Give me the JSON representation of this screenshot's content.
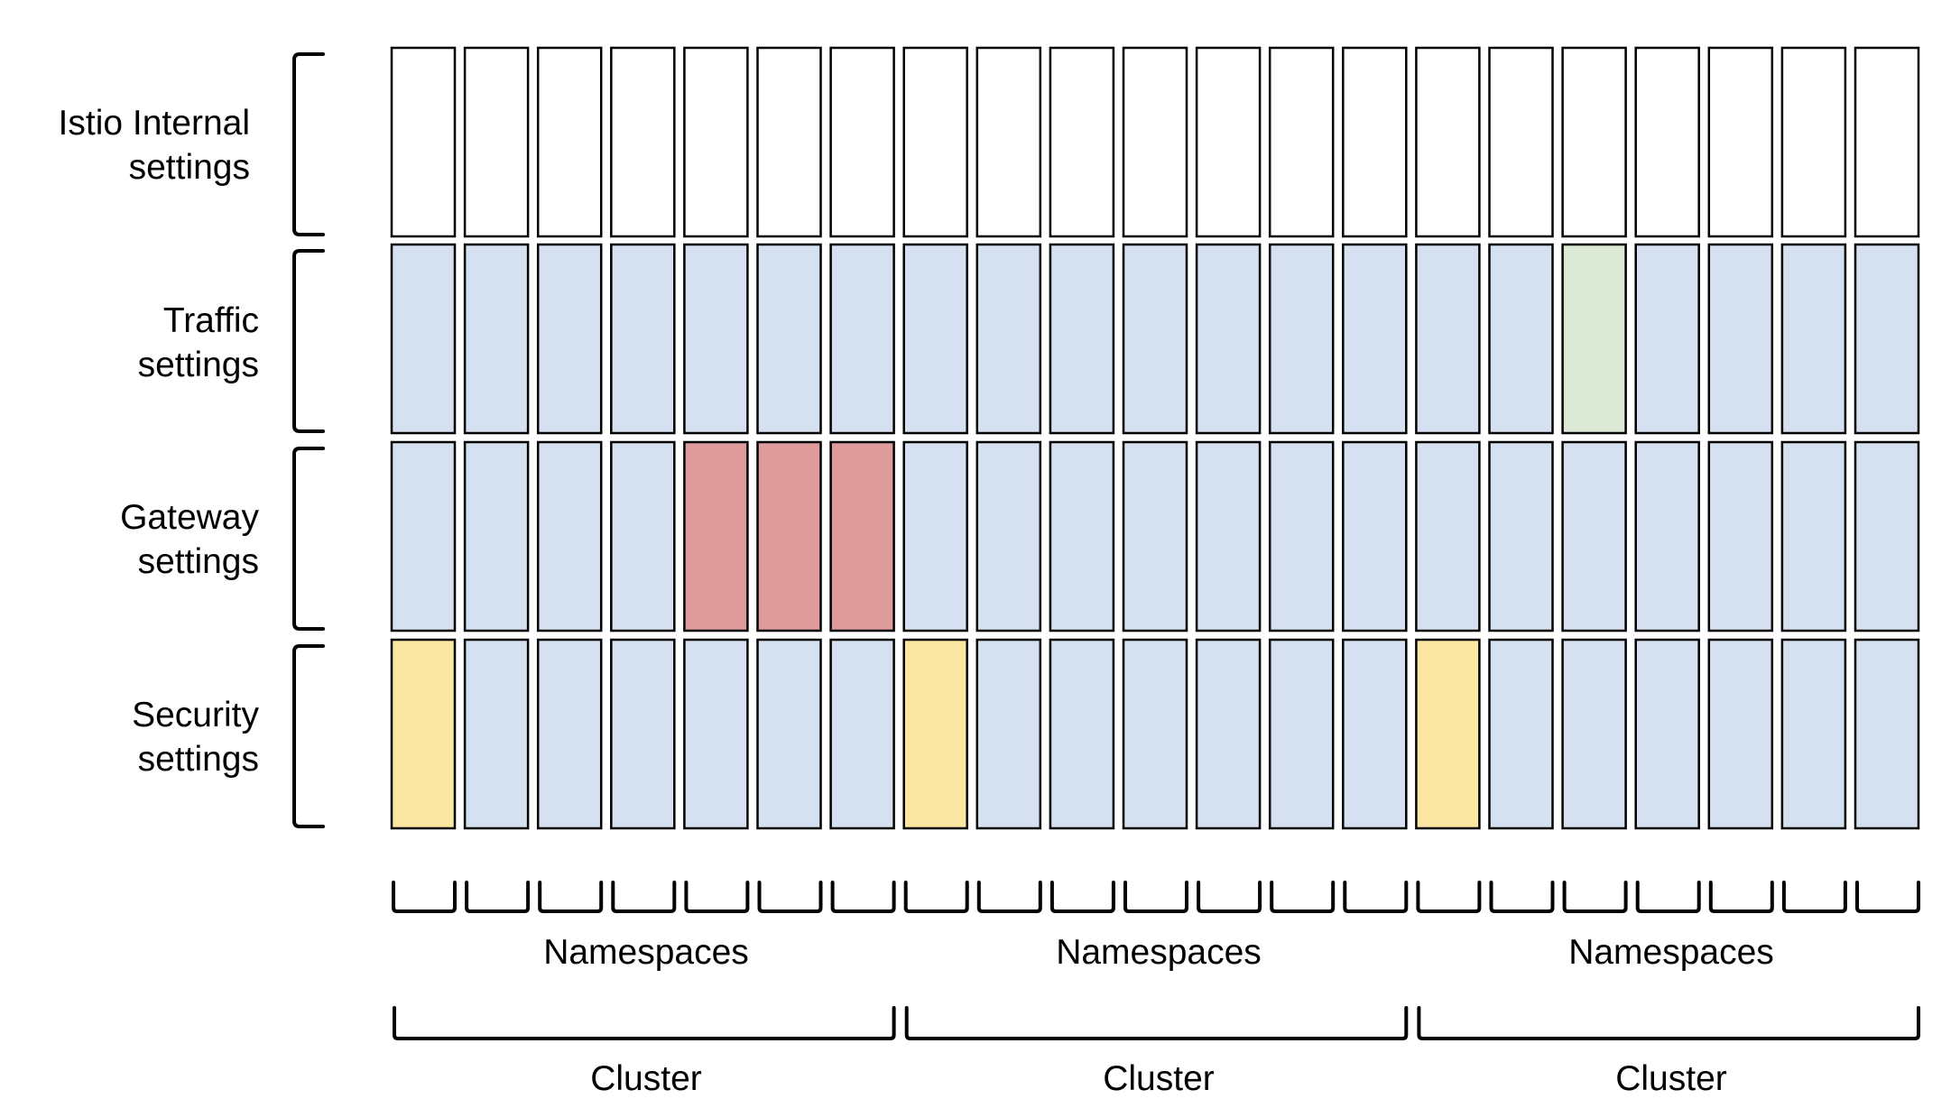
{
  "colors": {
    "white": "#ffffff",
    "blue": "#d5e1f0",
    "red": "#dd9b9b",
    "green": "#dce9d5",
    "yellow": "#fbe6a2",
    "stroke": "#000000"
  },
  "rows": [
    {
      "label_line1": "Istio Internal",
      "label_line2": "settings",
      "cells": [
        "white",
        "white",
        "white",
        "white",
        "white",
        "white",
        "white",
        "white",
        "white",
        "white",
        "white",
        "white",
        "white",
        "white",
        "white",
        "white",
        "white",
        "white",
        "white",
        "white",
        "white"
      ]
    },
    {
      "label_line1": "Traffic",
      "label_line2": "settings",
      "cells": [
        "blue",
        "blue",
        "blue",
        "blue",
        "blue",
        "blue",
        "blue",
        "blue",
        "blue",
        "blue",
        "blue",
        "blue",
        "blue",
        "blue",
        "blue",
        "blue",
        "green",
        "blue",
        "blue",
        "blue",
        "blue"
      ]
    },
    {
      "label_line1": "Gateway",
      "label_line2": "settings",
      "cells": [
        "blue",
        "blue",
        "blue",
        "blue",
        "red",
        "red",
        "red",
        "blue",
        "blue",
        "blue",
        "blue",
        "blue",
        "blue",
        "blue",
        "blue",
        "blue",
        "blue",
        "blue",
        "blue",
        "blue",
        "blue"
      ]
    },
    {
      "label_line1": "Security",
      "label_line2": "settings",
      "cells": [
        "yellow",
        "blue",
        "blue",
        "blue",
        "blue",
        "blue",
        "blue",
        "yellow",
        "blue",
        "blue",
        "blue",
        "blue",
        "blue",
        "blue",
        "yellow",
        "blue",
        "blue",
        "blue",
        "blue",
        "blue",
        "blue"
      ]
    }
  ],
  "clusters": [
    {
      "namespaces_label": "Namespaces",
      "cluster_label": "Cluster",
      "namespace_count": 7
    },
    {
      "namespaces_label": "Namespaces",
      "cluster_label": "Cluster",
      "namespace_count": 7
    },
    {
      "namespaces_label": "Namespaces",
      "cluster_label": "Cluster",
      "namespace_count": 7
    }
  ]
}
